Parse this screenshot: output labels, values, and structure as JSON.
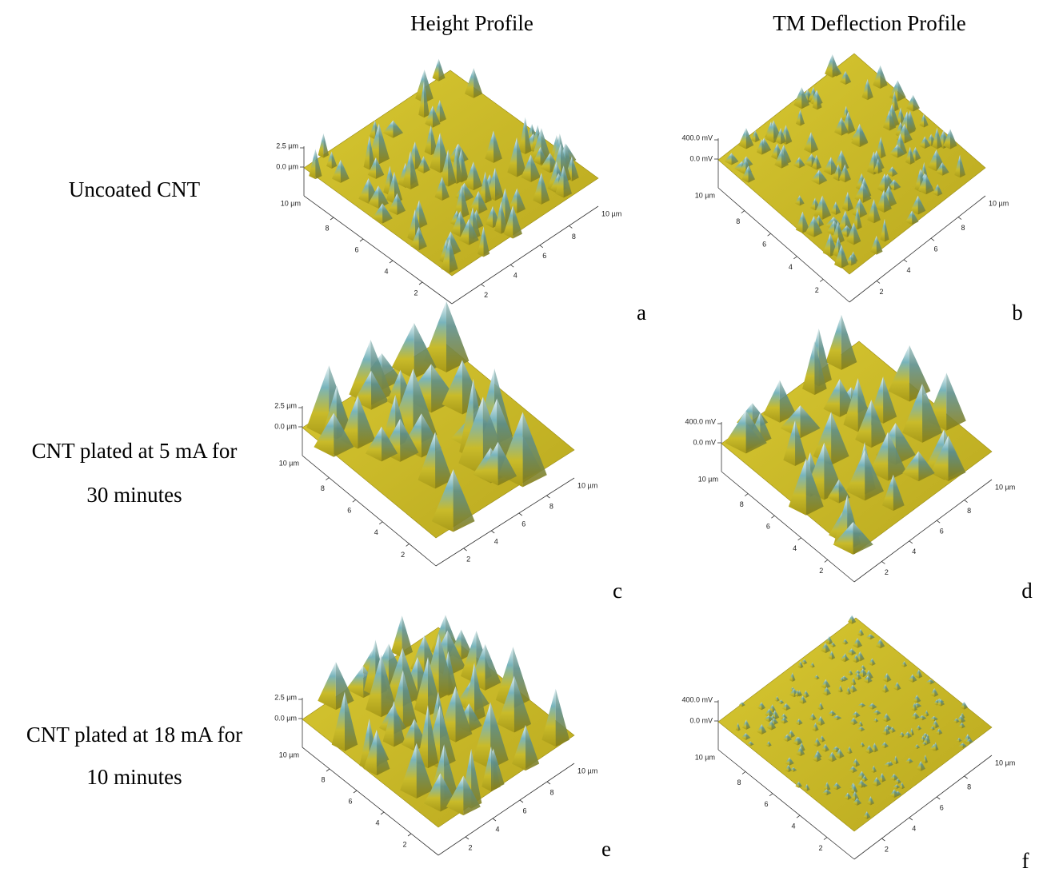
{
  "columns": [
    "Height Profile",
    "TM Deflection Profile"
  ],
  "rows": [
    {
      "label_lines": [
        "Uncoated CNT"
      ]
    },
    {
      "label_lines": [
        "CNT plated at 5 mA for",
        "30 minutes"
      ]
    },
    {
      "label_lines": [
        "CNT plated at 18 mA for",
        "10 minutes"
      ]
    }
  ],
  "panels": [
    {
      "letter": "a",
      "z_top": "2.5 µm",
      "z_zero": "0.0 µm",
      "left_end": "10 µm",
      "right_end": "10 µm",
      "left_ticks": [
        "8",
        "6",
        "4",
        "2"
      ],
      "right_ticks": [
        "2",
        "4",
        "6",
        "8"
      ]
    },
    {
      "letter": "b",
      "z_top": "400.0 mV",
      "z_zero": "0.0 mV",
      "left_end": "10 µm",
      "right_end": "10 µm",
      "left_ticks": [
        "8",
        "6",
        "4",
        "2"
      ],
      "right_ticks": [
        "2",
        "4",
        "6",
        "8"
      ]
    },
    {
      "letter": "c",
      "z_top": "2.5 µm",
      "z_zero": "0.0 µm",
      "left_end": "10 µm",
      "right_end": "10 µm",
      "left_ticks": [
        "8",
        "6",
        "4",
        "2"
      ],
      "right_ticks": [
        "2",
        "4",
        "6",
        "8"
      ]
    },
    {
      "letter": "d",
      "z_top": "400.0 mV",
      "z_zero": "0.0 mV",
      "left_end": "10 µm",
      "right_end": "10 µm",
      "left_ticks": [
        "8",
        "6",
        "4",
        "2"
      ],
      "right_ticks": [
        "2",
        "4",
        "6",
        "8"
      ]
    },
    {
      "letter": "e",
      "z_top": "2.5 µm",
      "z_zero": "0.0 µm",
      "left_end": "10 µm",
      "right_end": "10 µm",
      "left_ticks": [
        "8",
        "6",
        "4",
        "2"
      ],
      "right_ticks": [
        "2",
        "4",
        "6",
        "8"
      ]
    },
    {
      "letter": "f",
      "z_top": "400.0 mV",
      "z_zero": "0.0 mV",
      "left_end": "10 µm",
      "right_end": "10 µm",
      "left_ticks": [
        "8",
        "6",
        "4",
        "2"
      ],
      "right_ticks": [
        "2",
        "4",
        "6",
        "8"
      ]
    }
  ]
}
